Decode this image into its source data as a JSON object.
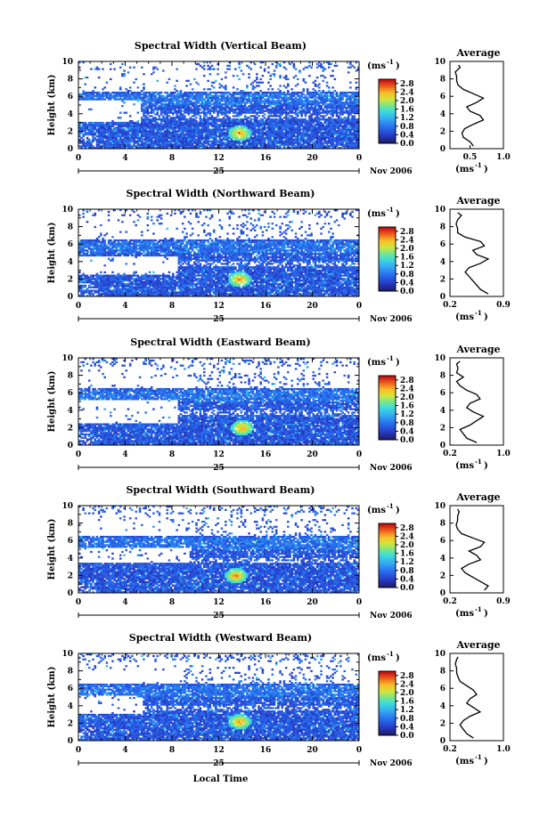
{
  "figure": {
    "x_axis_label": "Local Time",
    "date_label": "Nov 2006",
    "day_label": "25",
    "unit_label": "(ms",
    "unit_exp": "-1",
    "avg_title": "Average",
    "y_label": "Height (km)"
  },
  "chart_data": [
    {
      "type": "heatmap",
      "title": "Spectral Width (Vertical Beam)",
      "xlabel": "Local Time",
      "ylabel": "Height (km)",
      "x_ticks": [
        "0",
        "4",
        "8",
        "12",
        "16",
        "20",
        "0"
      ],
      "xlim": [
        0,
        24
      ],
      "y_ticks": [
        "0",
        "2",
        "4",
        "6",
        "8",
        "10"
      ],
      "ylim": [
        0,
        10
      ],
      "colorbar": {
        "ticks": [
          "2.8",
          "2.4",
          "2.0",
          "1.6",
          "1.2",
          "0.8",
          "0.4",
          "0.0"
        ],
        "range": [
          0,
          3.0
        ],
        "unit": "ms-1"
      },
      "clear_gaps": [
        [
          3.0,
          5.0,
          5.3
        ],
        [
          0.0,
          1.5,
          7.0
        ],
        [
          9.5,
          9.5,
          10.0
        ]
      ],
      "hotspot": {
        "time": 13.8,
        "height": 1.8
      },
      "average_profile": {
        "title": "Average",
        "xlabel": "(ms-1)",
        "x_ticks": [
          "0.5",
          "1.0"
        ],
        "xlim": [
          0.2,
          1.0
        ],
        "ylim": [
          0,
          10
        ],
        "heights": [
          0.3,
          0.8,
          1.3,
          1.8,
          2.3,
          2.8,
          3.3,
          3.8,
          4.3,
          4.8,
          5.3,
          5.8,
          6.3,
          6.8,
          7.3,
          7.8,
          8.3,
          8.8,
          9.3,
          9.6
        ],
        "values": [
          0.55,
          0.5,
          0.4,
          0.38,
          0.42,
          0.55,
          0.7,
          0.65,
          0.5,
          0.45,
          0.6,
          0.7,
          0.55,
          0.4,
          0.32,
          0.3,
          0.3,
          0.28,
          0.35,
          0.33
        ]
      }
    },
    {
      "type": "heatmap",
      "title": "Spectral Width (Northward Beam)",
      "xlabel": "Local Time",
      "ylabel": "Height (km)",
      "x_ticks": [
        "0",
        "4",
        "8",
        "12",
        "16",
        "20",
        "0"
      ],
      "xlim": [
        0,
        24
      ],
      "y_ticks": [
        "0",
        "2",
        "4",
        "6",
        "8",
        "10"
      ],
      "ylim": [
        0,
        10
      ],
      "colorbar": {
        "ticks": [
          "2.8",
          "2.4",
          "2.0",
          "1.6",
          "1.2",
          "0.8",
          "0.4",
          "0.0"
        ],
        "range": [
          0,
          3.0
        ],
        "unit": "ms-1"
      },
      "clear_gaps": [
        [
          2.5,
          4.0,
          8.5
        ],
        [
          0.0,
          2.5,
          7.5
        ],
        [
          3.0,
          3.0,
          8.5
        ]
      ],
      "hotspot": {
        "time": 13.8,
        "height": 2.0
      },
      "average_profile": {
        "title": "Average",
        "xlabel": "(ms-1)",
        "x_ticks": [
          "0.2",
          "0.9"
        ],
        "xlim": [
          0.2,
          0.9
        ],
        "ylim": [
          0,
          10
        ],
        "heights": [
          0.3,
          0.8,
          1.3,
          1.8,
          2.3,
          2.8,
          3.3,
          3.8,
          4.3,
          4.8,
          5.3,
          5.8,
          6.3,
          6.8,
          7.3,
          7.8,
          8.3,
          8.8,
          9.3,
          9.6
        ],
        "values": [
          0.7,
          0.6,
          0.55,
          0.5,
          0.45,
          0.4,
          0.45,
          0.6,
          0.7,
          0.55,
          0.5,
          0.65,
          0.6,
          0.4,
          0.3,
          0.3,
          0.28,
          0.3,
          0.35,
          0.3
        ]
      }
    },
    {
      "type": "heatmap",
      "title": "Spectral Width (Eastward Beam)",
      "xlabel": "Local Time",
      "ylabel": "Height (km)",
      "x_ticks": [
        "0",
        "4",
        "8",
        "12",
        "16",
        "20",
        "0"
      ],
      "xlim": [
        0,
        24
      ],
      "y_ticks": [
        "0",
        "2",
        "4",
        "6",
        "8",
        "10"
      ],
      "ylim": [
        0,
        10
      ],
      "colorbar": {
        "ticks": [
          "2.8",
          "2.4",
          "2.0",
          "1.6",
          "1.2",
          "0.8",
          "0.4",
          "0.0"
        ],
        "range": [
          0,
          3.0
        ],
        "unit": "ms-1"
      },
      "clear_gaps": [
        [
          2.5,
          4.5,
          8.5
        ],
        [
          0.0,
          1.5,
          10.0
        ],
        [
          7.0,
          7.0,
          10.0
        ]
      ],
      "hotspot": {
        "time": 14.0,
        "height": 2.0
      },
      "average_profile": {
        "title": "Average",
        "xlabel": "(ms-1)",
        "x_ticks": [
          "0.2",
          "1.0"
        ],
        "xlim": [
          0.2,
          1.0
        ],
        "ylim": [
          0,
          10
        ],
        "heights": [
          0.3,
          0.8,
          1.3,
          1.8,
          2.3,
          2.8,
          3.3,
          3.8,
          4.3,
          4.8,
          5.3,
          5.8,
          6.3,
          6.8,
          7.3,
          7.8,
          8.3,
          8.8,
          9.3,
          9.6
        ],
        "values": [
          0.6,
          0.45,
          0.4,
          0.35,
          0.5,
          0.6,
          0.7,
          0.55,
          0.45,
          0.5,
          0.65,
          0.6,
          0.45,
          0.35,
          0.3,
          0.4,
          0.3,
          0.32,
          0.3,
          0.35
        ]
      }
    },
    {
      "type": "heatmap",
      "title": "Spectral Width (Southward Beam)",
      "xlabel": "Local Time",
      "ylabel": "Height (km)",
      "x_ticks": [
        "0",
        "4",
        "8",
        "12",
        "16",
        "20",
        "0"
      ],
      "xlim": [
        0,
        24
      ],
      "y_ticks": [
        "0",
        "2",
        "4",
        "6",
        "8",
        "10"
      ],
      "ylim": [
        0,
        10
      ],
      "colorbar": {
        "ticks": [
          "2.8",
          "2.4",
          "2.0",
          "1.6",
          "1.2",
          "0.8",
          "0.4",
          "0.0"
        ],
        "range": [
          0,
          3.0
        ],
        "unit": "ms-1"
      },
      "clear_gaps": [
        [
          3.5,
          4.5,
          9.5
        ],
        [
          0.0,
          2.0,
          9.5
        ],
        [
          6.5,
          6.5,
          10.0
        ]
      ],
      "hotspot": {
        "time": 13.5,
        "height": 2.0
      },
      "average_profile": {
        "title": "Average",
        "xlabel": "(ms-1)",
        "x_ticks": [
          "0.2",
          "0.9"
        ],
        "xlim": [
          0.2,
          0.9
        ],
        "ylim": [
          0,
          10
        ],
        "heights": [
          0.3,
          0.8,
          1.3,
          1.8,
          2.3,
          2.8,
          3.3,
          3.8,
          4.3,
          4.8,
          5.3,
          5.8,
          6.3,
          6.8,
          7.3,
          7.8,
          8.3,
          8.8,
          9.3,
          9.6
        ],
        "values": [
          0.65,
          0.7,
          0.6,
          0.5,
          0.4,
          0.35,
          0.45,
          0.6,
          0.55,
          0.45,
          0.6,
          0.65,
          0.5,
          0.35,
          0.3,
          0.28,
          0.3,
          0.3,
          0.32,
          0.3
        ]
      }
    },
    {
      "type": "heatmap",
      "title": "Spectral Width (Westward Beam)",
      "xlabel": "Local Time",
      "ylabel": "Height (km)",
      "x_ticks": [
        "0",
        "4",
        "8",
        "12",
        "16",
        "20",
        "0"
      ],
      "xlim": [
        0,
        24
      ],
      "y_ticks": [
        "0",
        "2",
        "4",
        "6",
        "8",
        "10"
      ],
      "ylim": [
        0,
        10
      ],
      "colorbar": {
        "ticks": [
          "2.8",
          "2.4",
          "2.0",
          "1.6",
          "1.2",
          "0.8",
          "0.4",
          "0.0"
        ],
        "range": [
          0,
          3.0
        ],
        "unit": "ms-1"
      },
      "clear_gaps": [
        [
          3.0,
          4.5,
          5.5
        ],
        [
          0.0,
          1.5,
          7.0
        ],
        [
          7.0,
          7.5,
          9.0
        ]
      ],
      "hotspot": {
        "time": 13.8,
        "height": 2.2
      },
      "average_profile": {
        "title": "Average",
        "xlabel": "(ms-1)",
        "x_ticks": [
          "0.2",
          "1.0"
        ],
        "xlim": [
          0.2,
          1.0
        ],
        "ylim": [
          0,
          10
        ],
        "heights": [
          0.3,
          0.8,
          1.3,
          1.8,
          2.3,
          2.8,
          3.3,
          3.8,
          4.3,
          4.8,
          5.3,
          5.8,
          6.3,
          6.8,
          7.3,
          7.8,
          8.3,
          8.8,
          9.3,
          9.6
        ],
        "values": [
          0.55,
          0.45,
          0.4,
          0.35,
          0.4,
          0.5,
          0.65,
          0.55,
          0.45,
          0.5,
          0.6,
          0.55,
          0.45,
          0.35,
          0.32,
          0.3,
          0.3,
          0.28,
          0.3,
          0.32
        ]
      }
    }
  ]
}
